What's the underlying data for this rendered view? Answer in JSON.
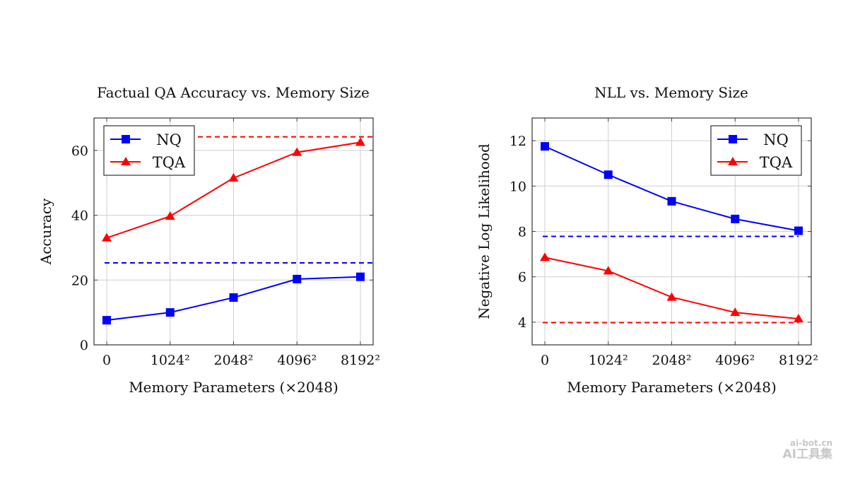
{
  "chart_data": [
    {
      "type": "line",
      "title": "Factual QA Accuracy vs. Memory Size",
      "xlabel": "Memory Parameters (×2048)",
      "ylabel": "Accuracy",
      "categories": [
        "0",
        "1024²",
        "2048²",
        "4096²",
        "8192²"
      ],
      "ylim": [
        0,
        70
      ],
      "yticks": [
        0,
        20,
        40,
        60
      ],
      "grid": true,
      "legend_position": "top-left",
      "series": [
        {
          "name": "NQ",
          "color": "#0000ff",
          "marker": "square",
          "values": [
            7.6,
            10.0,
            14.6,
            20.3,
            21.0
          ]
        },
        {
          "name": "TQA",
          "color": "#ff0000",
          "marker": "triangle",
          "values": [
            33.0,
            39.7,
            51.5,
            59.4,
            62.5
          ]
        }
      ],
      "reference_lines": [
        {
          "color": "#0000ff",
          "style": "dashed",
          "value": 25.3
        },
        {
          "color": "#ff0000",
          "style": "dashed",
          "value": 64.2
        }
      ]
    },
    {
      "type": "line",
      "title": "NLL vs. Memory Size",
      "xlabel": "Memory Parameters (×2048)",
      "ylabel": "Negative Log Likelihood",
      "categories": [
        "0",
        "1024²",
        "2048²",
        "4096²",
        "8192²"
      ],
      "ylim": [
        3,
        13
      ],
      "yticks": [
        4,
        6,
        8,
        10,
        12
      ],
      "grid": true,
      "legend_position": "top-right",
      "series": [
        {
          "name": "NQ",
          "color": "#0000ff",
          "marker": "square",
          "values": [
            11.75,
            10.5,
            9.33,
            8.55,
            8.03
          ]
        },
        {
          "name": "TQA",
          "color": "#ff0000",
          "marker": "triangle",
          "values": [
            6.85,
            6.26,
            5.1,
            4.43,
            4.15
          ]
        }
      ],
      "reference_lines": [
        {
          "color": "#0000ff",
          "style": "dashed",
          "value": 7.78
        },
        {
          "color": "#ff0000",
          "style": "dashed",
          "value": 3.98
        }
      ]
    }
  ],
  "watermark": {
    "line1": "ai-bot.cn",
    "line2": "AI工具集"
  }
}
